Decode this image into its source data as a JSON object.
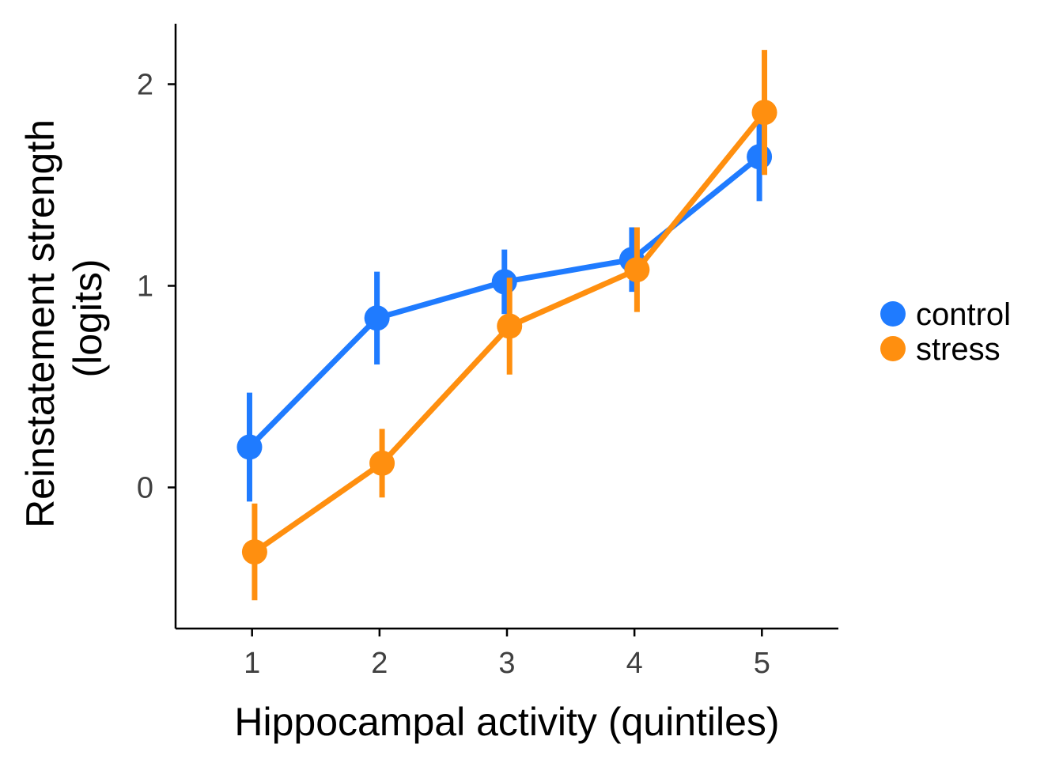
{
  "chart_data": {
    "type": "line",
    "title": "",
    "xlabel": "Hippocampal activity (quintiles)",
    "ylabel_lines": [
      "Reinstatement strength",
      "(logits)"
    ],
    "x": [
      1,
      2,
      3,
      4,
      5
    ],
    "x_ticks": [
      "1",
      "2",
      "3",
      "4",
      "5"
    ],
    "xlim": [
      0.4,
      5.6
    ],
    "y_ticks": [
      "0",
      "1",
      "2"
    ],
    "ylim": [
      -0.7,
      2.3
    ],
    "grid": false,
    "legend_position": "right",
    "error_bars": true,
    "series": [
      {
        "name": "control",
        "color": "#1f7bff",
        "values": [
          0.2,
          0.84,
          1.02,
          1.13,
          1.64
        ],
        "lower": [
          -0.07,
          0.61,
          0.86,
          0.97,
          1.42
        ],
        "upper": [
          0.47,
          1.07,
          1.18,
          1.29,
          1.86
        ]
      },
      {
        "name": "stress",
        "color": "#ff8f0f",
        "values": [
          -0.32,
          0.12,
          0.8,
          1.08,
          1.86
        ],
        "lower": [
          -0.56,
          -0.05,
          0.56,
          0.87,
          1.55
        ],
        "upper": [
          -0.08,
          0.29,
          1.04,
          1.29,
          2.17
        ]
      }
    ]
  }
}
